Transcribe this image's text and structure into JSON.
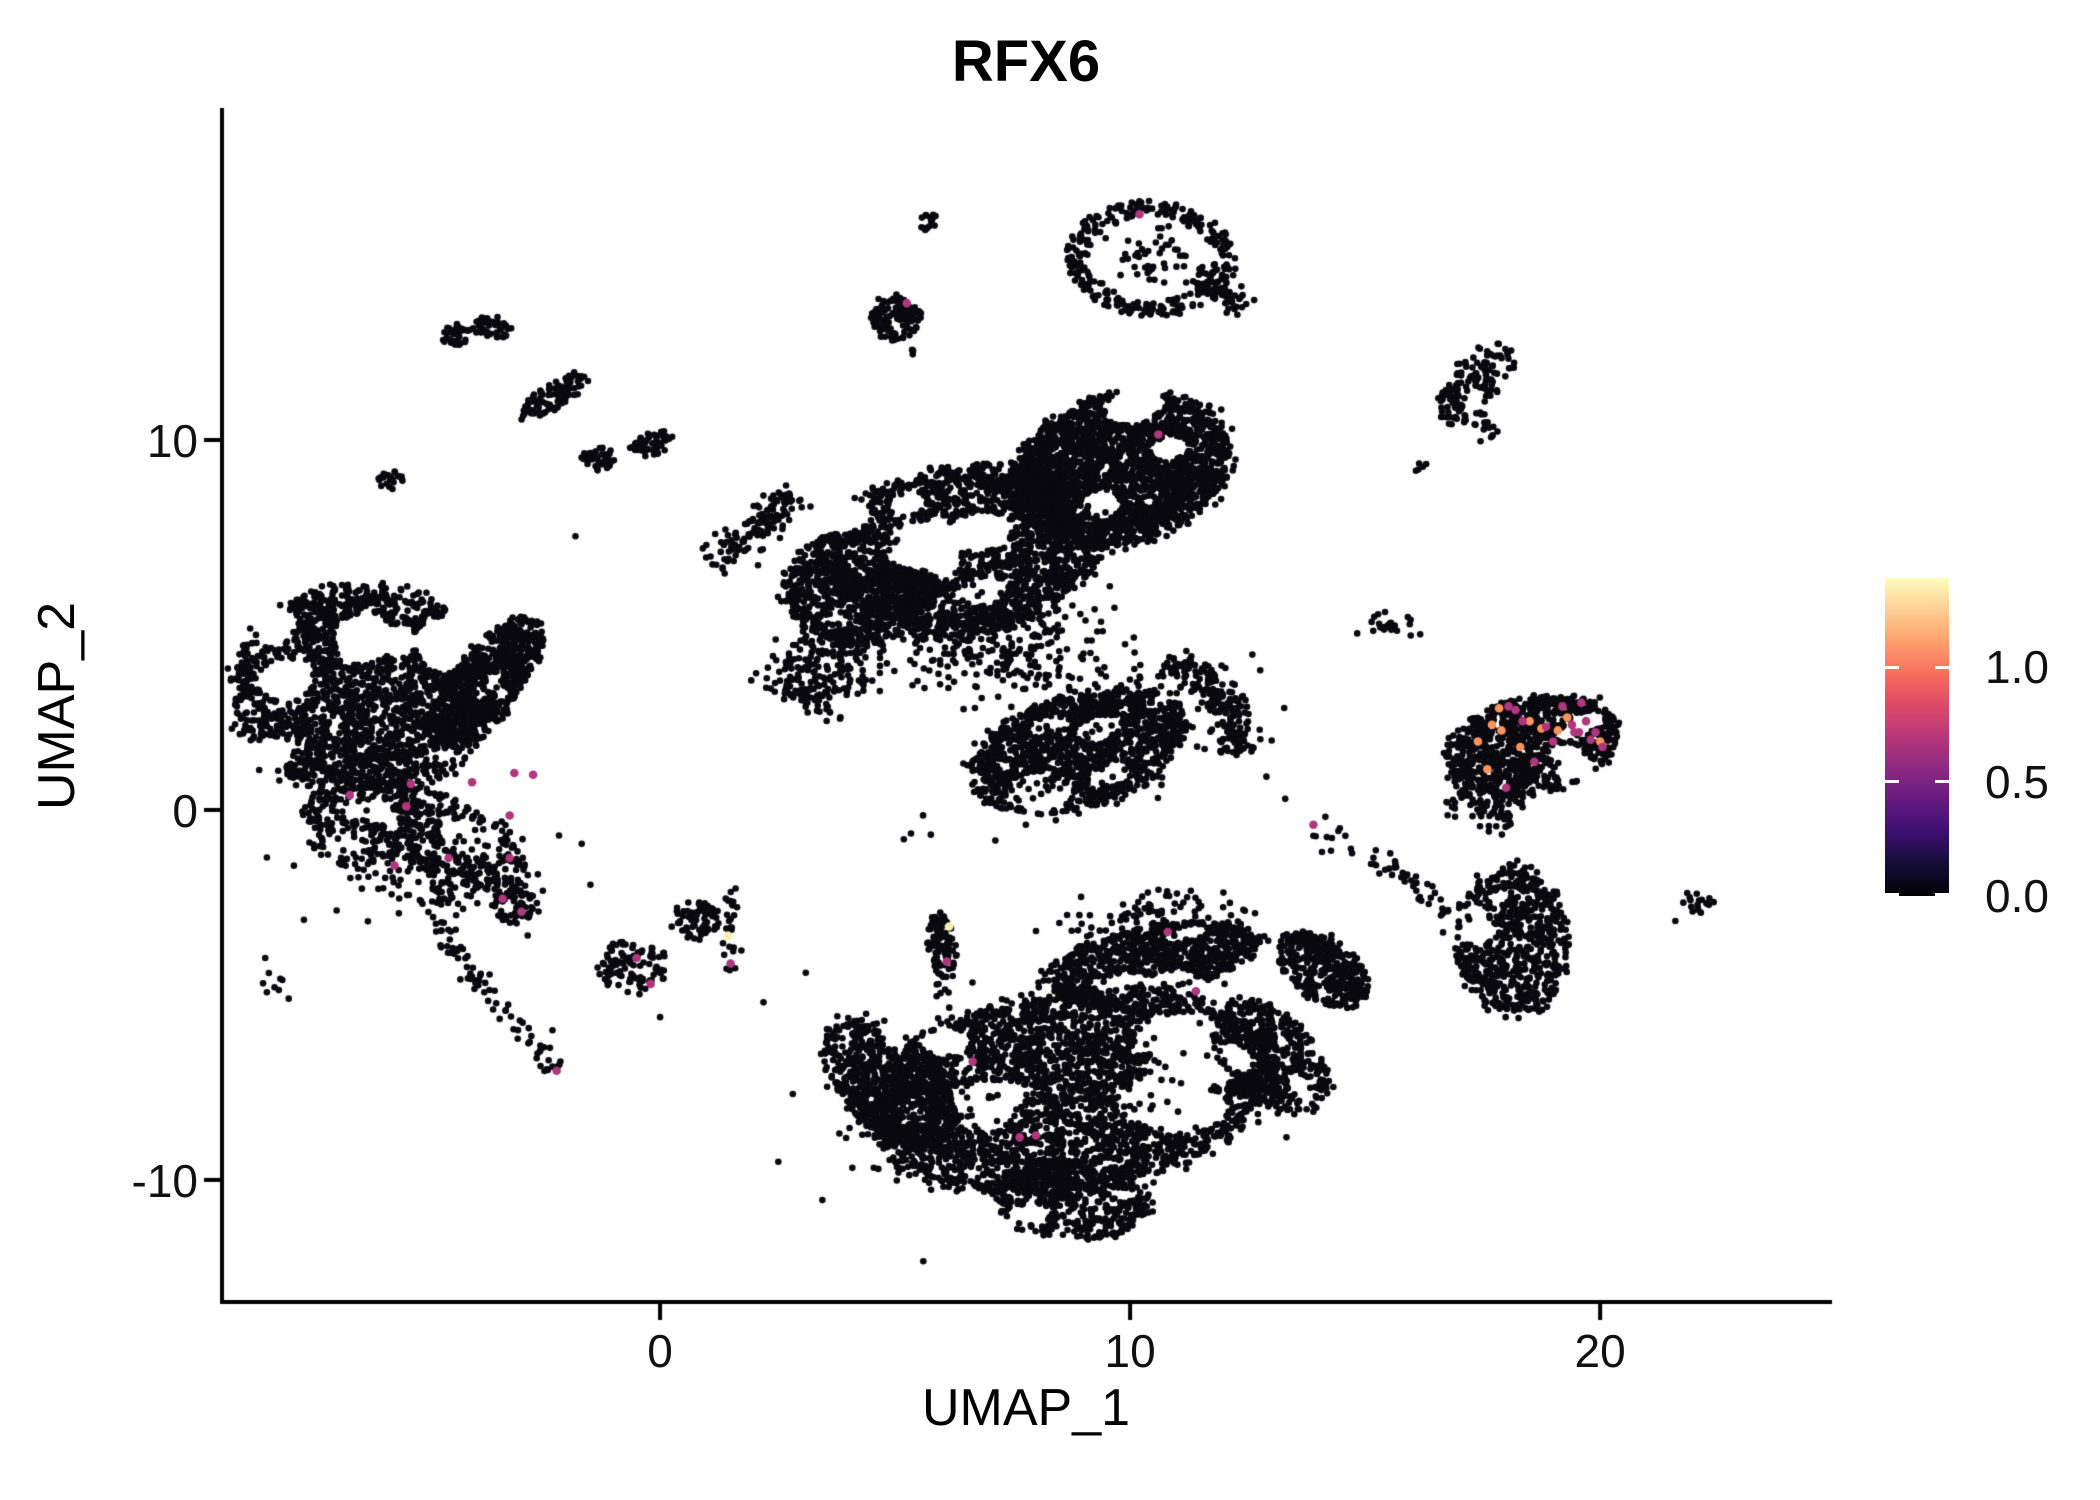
{
  "title": "RFX6",
  "axes": {
    "x": {
      "label": "UMAP_1",
      "range": [
        -9.32,
        24.89
      ],
      "ticks": [
        {
          "value": 0,
          "label": "0"
        },
        {
          "value": 10,
          "label": "10"
        },
        {
          "value": 20,
          "label": "20"
        }
      ]
    },
    "y": {
      "label": "UMAP_2",
      "range": [
        -13.3,
        18.92
      ],
      "ticks": [
        {
          "value": 10,
          "label": "10"
        },
        {
          "value": 0,
          "label": "0"
        },
        {
          "value": -10,
          "label": "-10"
        }
      ]
    }
  },
  "colorbar": {
    "max_value": 1.39,
    "min_value": 0.0,
    "labels": [
      {
        "value": 1.0,
        "label": "1.0"
      },
      {
        "value": 0.5,
        "label": "0.5"
      },
      {
        "value": 0.0,
        "label": "0.0"
      }
    ],
    "gradient": [
      "#000004",
      "#140e36",
      "#3b0f70",
      "#641a80",
      "#8c2981",
      "#b73779",
      "#de4968",
      "#f76f5c",
      "#fe9f6d",
      "#fecf92",
      "#fcfdbf"
    ]
  },
  "palette": {
    "base": "#0a090f",
    "mid": "#b0367e",
    "high": "#fb955c",
    "max": "#f9edae"
  },
  "chart_data": {
    "type": "scatter",
    "title": "RFX6",
    "xlabel": "UMAP_1",
    "ylabel": "UMAP_2",
    "xlim": [
      -9.32,
      24.89
    ],
    "ylim": [
      -13.3,
      18.92
    ],
    "grid": false,
    "legend_position": "right",
    "color_scale": {
      "name": "magma",
      "domain": [
        0.0,
        1.39
      ],
      "ticks": [
        0.0,
        0.5,
        1.0
      ]
    },
    "clusters": [
      {
        "id": "top-ring",
        "x": 10.45,
        "y": 14.9,
        "rx": 1.75,
        "ry": 1.5,
        "rot": -10,
        "n": 300,
        "kind": "ring"
      },
      {
        "id": "top-ring-inner",
        "x": 10.45,
        "y": 14.9,
        "rx": 1.0,
        "ry": 0.9,
        "rot": 0,
        "n": 45,
        "kind": "sparse"
      },
      {
        "id": "top-ring-tail",
        "pts": [
          [
            11.3,
            14.5
          ],
          [
            12.0,
            14.0
          ],
          [
            12.4,
            13.5
          ]
        ],
        "w": 0.16,
        "n": 55,
        "kind": "chain"
      },
      {
        "id": "top-small-blob",
        "x": 5.0,
        "y": 13.3,
        "rx": 0.55,
        "ry": 0.6,
        "rot": 0,
        "n": 130,
        "kind": "fill"
      },
      {
        "id": "top-small-stray",
        "x": 5.35,
        "y": 12.35,
        "rx": 0.12,
        "ry": 0.12,
        "n": 3,
        "kind": "sparse"
      },
      {
        "id": "top-tiny-blob",
        "x": 5.72,
        "y": 15.9,
        "rx": 0.2,
        "ry": 0.28,
        "rot": 0,
        "n": 16,
        "kind": "fill"
      },
      {
        "id": "topright-hook",
        "x": 17.35,
        "y": 11.55,
        "rx": 1.25,
        "ry": 0.6,
        "rot": 60,
        "n": 150,
        "kind": "fill",
        "holes": 2
      },
      {
        "id": "topright-hook-tail",
        "pts": [
          [
            17.55,
            10.7
          ],
          [
            17.75,
            10.05
          ]
        ],
        "w": 0.15,
        "n": 16,
        "kind": "chain"
      },
      {
        "id": "topright-specks",
        "x": 16.2,
        "y": 9.3,
        "rx": 0.3,
        "ry": 0.2,
        "n": 5,
        "kind": "sparse"
      },
      {
        "id": "left-pair-a",
        "x": -4.35,
        "y": 12.85,
        "rx": 0.33,
        "ry": 0.3,
        "n": 38,
        "kind": "fill"
      },
      {
        "id": "left-pair-b",
        "x": -3.55,
        "y": 13.05,
        "rx": 0.42,
        "ry": 0.3,
        "rot": -15,
        "n": 48,
        "kind": "fill"
      },
      {
        "id": "left-diag-blob",
        "x": -2.25,
        "y": 11.2,
        "rx": 0.95,
        "ry": 0.32,
        "rot": 42,
        "n": 95,
        "kind": "fill"
      },
      {
        "id": "left-tiny-blob",
        "x": -5.72,
        "y": 8.9,
        "rx": 0.27,
        "ry": 0.3,
        "n": 22,
        "kind": "fill"
      },
      {
        "id": "mid-chain",
        "pts": [
          [
            1.0,
            6.85
          ],
          [
            1.75,
            7.3
          ],
          [
            2.4,
            8.1
          ],
          [
            2.95,
            8.5
          ]
        ],
        "w": 0.22,
        "n": 120,
        "kind": "chain"
      },
      {
        "id": "mid-blob-a",
        "x": -1.3,
        "y": 9.5,
        "rx": 0.38,
        "ry": 0.33,
        "n": 42,
        "kind": "fill"
      },
      {
        "id": "mid-blob-b",
        "x": -0.15,
        "y": 9.9,
        "rx": 0.5,
        "ry": 0.3,
        "rot": 30,
        "n": 52,
        "kind": "fill"
      },
      {
        "id": "central-head",
        "x": 9.8,
        "y": 9.2,
        "rx": 2.5,
        "ry": 1.95,
        "rot": 30,
        "n": 2500,
        "kind": "fill",
        "holes": 3
      },
      {
        "id": "central-body",
        "x": 6.4,
        "y": 7.0,
        "rx": 3.1,
        "ry": 2.25,
        "rot": 15,
        "n": 2300,
        "kind": "fill",
        "holes": 6
      },
      {
        "id": "central-left-lobe",
        "x": 4.2,
        "y": 6.0,
        "rx": 1.6,
        "ry": 1.5,
        "rot": 0,
        "n": 800,
        "kind": "fill",
        "holes": 3
      },
      {
        "id": "central-arm",
        "pts": [
          [
            4.2,
            4.9
          ],
          [
            3.3,
            3.6
          ],
          [
            2.8,
            2.9
          ]
        ],
        "w": 0.5,
        "n": 260,
        "kind": "chain"
      },
      {
        "id": "central-speckle",
        "x": 7.3,
        "y": 4.6,
        "rx": 2.3,
        "ry": 1.7,
        "rot": 0,
        "n": 300,
        "kind": "sparse"
      },
      {
        "id": "central-wing",
        "x": 8.9,
        "y": 1.6,
        "rx": 2.45,
        "ry": 1.5,
        "rot": 25,
        "n": 1400,
        "kind": "fill",
        "holes": 5
      },
      {
        "id": "central-wing-fringe",
        "x": 8.9,
        "y": 1.6,
        "rx": 2.8,
        "ry": 1.8,
        "rot": 25,
        "n": 180,
        "kind": "sparse"
      },
      {
        "id": "central-right-arm",
        "pts": [
          [
            10.7,
            3.9
          ],
          [
            11.9,
            3.3
          ],
          [
            12.3,
            2.4
          ],
          [
            12.1,
            1.5
          ]
        ],
        "w": 0.28,
        "n": 200,
        "kind": "chain"
      },
      {
        "id": "right-specks",
        "x": 15.4,
        "y": 5.0,
        "rx": 0.75,
        "ry": 0.42,
        "rot": -10,
        "n": 26,
        "kind": "sparse"
      },
      {
        "id": "endocrine",
        "x": 18.55,
        "y": 1.75,
        "rx": 1.9,
        "ry": 1.3,
        "rot": 20,
        "n": 1000,
        "kind": "fill",
        "holes": 4
      },
      {
        "id": "endocrine-tail",
        "pts": [
          [
            16.9,
            0.5
          ],
          [
            17.6,
            0.1
          ],
          [
            18.2,
            -0.1
          ]
        ],
        "w": 0.3,
        "n": 90,
        "kind": "chain"
      },
      {
        "id": "endo-stream",
        "pts": [
          [
            13.9,
            -0.45
          ],
          [
            15.2,
            -1.3
          ],
          [
            16.3,
            -2.3
          ],
          [
            17.2,
            -3.1
          ]
        ],
        "w": 0.18,
        "n": 60,
        "kind": "chain"
      },
      {
        "id": "arrowhead",
        "x": 18.15,
        "y": -3.55,
        "rx": 1.2,
        "ry": 2.05,
        "rot": 0,
        "n": 650,
        "kind": "fill",
        "holes": 3
      },
      {
        "id": "farright-blob",
        "x": 22.05,
        "y": -2.5,
        "rx": 0.4,
        "ry": 0.3,
        "rot": -25,
        "n": 18,
        "kind": "fill"
      },
      {
        "id": "bottomright-mid",
        "x": 14.1,
        "y": -4.3,
        "rx": 1.2,
        "ry": 0.75,
        "rot": -50,
        "n": 380,
        "kind": "fill",
        "holes": 2
      },
      {
        "id": "bottom-ne-arm",
        "x": 10.5,
        "y": -4.05,
        "rx": 2.35,
        "ry": 0.9,
        "rot": 15,
        "n": 850,
        "kind": "fill",
        "holes": 3
      },
      {
        "id": "bottom-ne-fringe",
        "x": 10.4,
        "y": -2.9,
        "rx": 1.9,
        "ry": 0.7,
        "rot": 10,
        "n": 90,
        "kind": "sparse"
      },
      {
        "id": "bottom-main",
        "x": 8.7,
        "y": -7.6,
        "rx": 4.35,
        "ry": 2.7,
        "rot": 12,
        "n": 3600,
        "kind": "fill",
        "holes": 8
      },
      {
        "id": "bottom-left-wing",
        "x": 4.9,
        "y": -7.4,
        "rx": 2.0,
        "ry": 1.1,
        "rot": -60,
        "n": 800,
        "kind": "fill",
        "holes": 3
      },
      {
        "id": "bottom-tip",
        "x": 8.8,
        "y": -10.55,
        "rx": 1.7,
        "ry": 1.05,
        "rot": -5,
        "n": 450,
        "kind": "fill",
        "holes": 2
      },
      {
        "id": "bottom-right-lobe",
        "x": 13.0,
        "y": -6.7,
        "rx": 1.7,
        "ry": 1.0,
        "rot": -60,
        "n": 520,
        "kind": "fill",
        "holes": 2
      },
      {
        "id": "bottom-fringe",
        "x": 8.8,
        "y": -7.5,
        "rx": 5.0,
        "ry": 3.3,
        "rot": 12,
        "n": 200,
        "kind": "sparse"
      },
      {
        "id": "vertical-blob",
        "x": 6.0,
        "y": -3.7,
        "rx": 0.3,
        "ry": 0.95,
        "rot": 5,
        "n": 95,
        "kind": "fill"
      },
      {
        "id": "vertical-blob-stray",
        "x": 6.0,
        "y": -4.8,
        "rx": 0.25,
        "ry": 0.3,
        "n": 6,
        "kind": "sparse"
      },
      {
        "id": "small-left-blob",
        "x": -3.1,
        "y": -2.6,
        "rx": 0.45,
        "ry": 0.48,
        "n": 70,
        "kind": "fill"
      },
      {
        "id": "small-center-blob",
        "x": -0.6,
        "y": -4.2,
        "rx": 0.75,
        "ry": 0.72,
        "rot": 0,
        "n": 110,
        "kind": "fill",
        "holes": 2
      },
      {
        "id": "small-center-b",
        "x": 0.75,
        "y": -3.0,
        "rx": 0.5,
        "ry": 0.55,
        "rot": 0,
        "n": 75,
        "kind": "fill",
        "holes": 1
      },
      {
        "id": "thin-chain",
        "pts": [
          [
            1.42,
            -2.0
          ],
          [
            1.48,
            -3.2
          ],
          [
            1.52,
            -4.4
          ]
        ],
        "w": 0.1,
        "n": 26,
        "kind": "chain"
      },
      {
        "id": "left-main",
        "x": -6.35,
        "y": 3.2,
        "rx": 2.75,
        "ry": 2.85,
        "rot": 0,
        "n": 2500,
        "kind": "fill",
        "holes": 6
      },
      {
        "id": "left-right-lobe",
        "x": -3.65,
        "y": 3.5,
        "rx": 2.0,
        "ry": 0.75,
        "rot": 60,
        "n": 550,
        "kind": "fill",
        "holes": 2
      },
      {
        "id": "left-diag-lobe",
        "x": -3.1,
        "y": 4.25,
        "rx": 0.8,
        "ry": 0.33,
        "rot": 40,
        "n": 90,
        "kind": "fill"
      },
      {
        "id": "left-lower",
        "x": -5.2,
        "y": -0.9,
        "rx": 2.55,
        "ry": 1.5,
        "rot": -25,
        "n": 650,
        "kind": "fill",
        "holes": 5
      },
      {
        "id": "left-lower-sparse",
        "x": -5.0,
        "y": -1.2,
        "rx": 2.8,
        "ry": 1.8,
        "rot": -25,
        "n": 150,
        "kind": "sparse"
      },
      {
        "id": "left-tail",
        "pts": [
          [
            -4.9,
            -2.9
          ],
          [
            -4.0,
            -4.4
          ],
          [
            -3.0,
            -5.8
          ],
          [
            -2.2,
            -7.0
          ]
        ],
        "w": 0.14,
        "n": 80,
        "kind": "chain"
      },
      {
        "id": "left-specks",
        "x": -8.25,
        "y": -4.7,
        "rx": 0.3,
        "ry": 0.35,
        "n": 7,
        "kind": "sparse"
      }
    ],
    "isolated_points": [
      [
        -8.4,
        -4.0
      ],
      [
        -7.9,
        -5.1
      ],
      [
        0.0,
        -5.6
      ],
      [
        2.2,
        -5.2
      ],
      [
        3.1,
        -4.4
      ],
      [
        12.9,
        0.9
      ],
      [
        13.3,
        0.3
      ],
      [
        21.6,
        -3.0
      ],
      [
        3.2,
        8.2
      ],
      [
        -1.8,
        7.4
      ],
      [
        5.6,
        -12.2
      ],
      [
        12.6,
        4.2
      ]
    ],
    "expressing_cells": [
      [
        -6.6,
        0.4,
        "mid"
      ],
      [
        -5.3,
        0.7,
        "mid"
      ],
      [
        -5.4,
        0.1,
        "mid"
      ],
      [
        -4.0,
        0.75,
        "mid"
      ],
      [
        -3.1,
        1.0,
        "mid"
      ],
      [
        -2.7,
        0.95,
        "mid"
      ],
      [
        -3.2,
        -0.15,
        "mid"
      ],
      [
        -4.5,
        -1.3,
        "mid"
      ],
      [
        -3.2,
        -1.3,
        "mid"
      ],
      [
        -5.65,
        -1.5,
        "mid"
      ],
      [
        -3.35,
        -2.4,
        "mid"
      ],
      [
        -2.95,
        -2.75,
        "mid"
      ],
      [
        -2.2,
        -7.05,
        "mid"
      ],
      [
        -0.5,
        -4.0,
        "mid"
      ],
      [
        -0.2,
        -4.7,
        "mid"
      ],
      [
        1.45,
        -3.4,
        "max"
      ],
      [
        1.5,
        -4.15,
        "mid"
      ],
      [
        6.15,
        -3.15,
        "max"
      ],
      [
        6.1,
        -4.1,
        "mid"
      ],
      [
        5.25,
        13.7,
        "mid"
      ],
      [
        10.2,
        16.1,
        "mid"
      ],
      [
        10.6,
        10.15,
        "mid"
      ],
      [
        10.8,
        -3.3,
        "mid"
      ],
      [
        11.4,
        -4.9,
        "mid"
      ],
      [
        6.65,
        -6.8,
        "mid"
      ],
      [
        7.65,
        -8.85,
        "mid"
      ],
      [
        8.0,
        -8.8,
        "mid"
      ],
      [
        13.9,
        -0.4,
        "mid"
      ],
      [
        17.85,
        2.75,
        "high"
      ],
      [
        17.7,
        2.3,
        "high"
      ],
      [
        17.9,
        2.15,
        "high"
      ],
      [
        18.5,
        2.4,
        "high"
      ],
      [
        18.75,
        2.2,
        "high"
      ],
      [
        19.1,
        2.15,
        "high"
      ],
      [
        17.4,
        1.85,
        "high"
      ],
      [
        18.3,
        1.7,
        "high"
      ],
      [
        20.0,
        1.85,
        "high"
      ],
      [
        17.6,
        1.1,
        "high"
      ],
      [
        18.05,
        2.8,
        "mid"
      ],
      [
        18.2,
        2.7,
        "mid"
      ],
      [
        19.2,
        2.8,
        "mid"
      ],
      [
        19.6,
        2.9,
        "mid"
      ],
      [
        18.35,
        2.4,
        "mid"
      ],
      [
        18.85,
        2.25,
        "mid"
      ],
      [
        19.4,
        2.3,
        "mid"
      ],
      [
        19.45,
        2.1,
        "mid"
      ],
      [
        19.55,
        2.1,
        "mid"
      ],
      [
        19.9,
        2.1,
        "mid"
      ],
      [
        19.8,
        1.9,
        "mid"
      ],
      [
        19.0,
        1.85,
        "mid"
      ],
      [
        20.05,
        1.7,
        "mid"
      ],
      [
        18.0,
        0.6,
        "mid"
      ],
      [
        19.3,
        2.5,
        "high"
      ],
      [
        18.6,
        1.3,
        "mid"
      ],
      [
        19.7,
        2.4,
        "mid"
      ]
    ]
  }
}
